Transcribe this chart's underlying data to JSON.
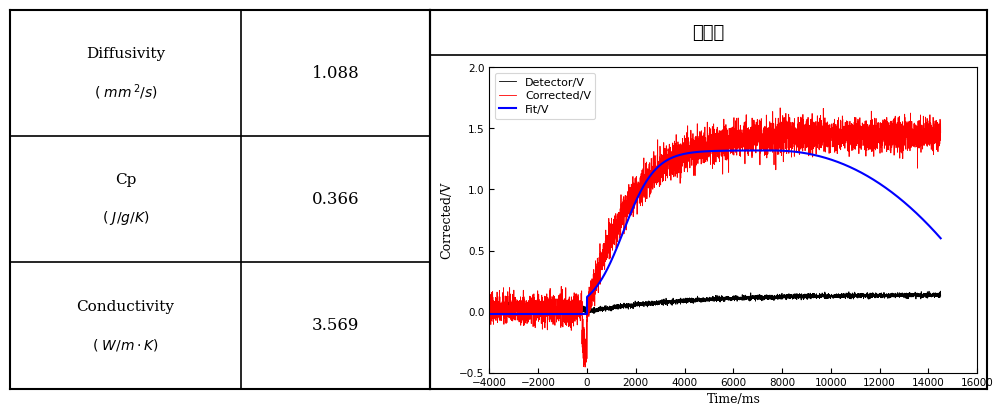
{
  "table_rows": [
    {
      "label": "Diffusivity",
      "unit": "( \\mathit{mm}^{\\,2}\\mathit{/s})",
      "value": "1.088"
    },
    {
      "label": "Cp",
      "unit": "( \\mathit{J/g/K})",
      "value": "0.366"
    },
    {
      "label": "Conductivity",
      "unit": "( \\mathit{W/m\\cdot K})",
      "value": "3.569"
    }
  ],
  "graph_title": "그래프",
  "xlabel": "Time/ms",
  "ylabel": "Corrected/V",
  "xlim": [
    -4000,
    16000
  ],
  "ylim": [
    -0.5,
    2.0
  ],
  "xticks": [
    -4000,
    -2000,
    0,
    2000,
    4000,
    6000,
    8000,
    10000,
    12000,
    14000,
    16000
  ],
  "yticks": [
    -0.5,
    0.0,
    0.5,
    1.0,
    1.5,
    2.0
  ],
  "legend": [
    "Detector/V",
    "Corrected/V",
    "Fit/V"
  ],
  "colors": {
    "detector": "#000000",
    "corrected": "#ff0000",
    "fit": "#0000ff",
    "border": "#000000",
    "background": "#ffffff"
  }
}
